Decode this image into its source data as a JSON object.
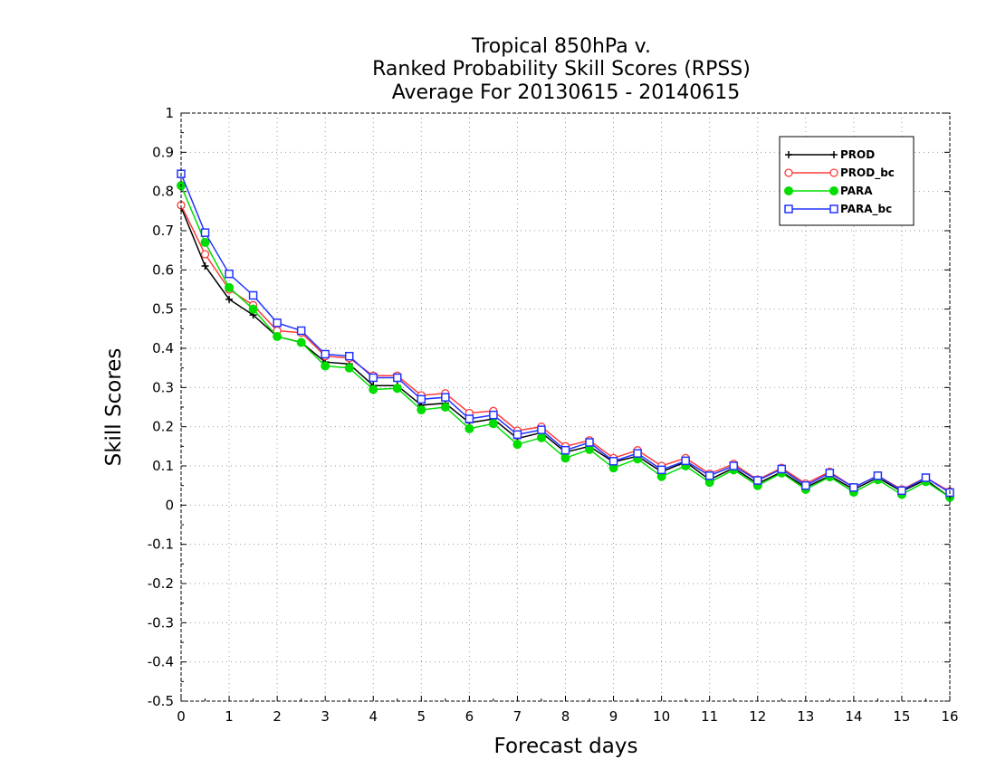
{
  "chart_data": {
    "type": "line",
    "title_lines": [
      "Tropical 850hPa v.",
      "Ranked Probability Skill Scores (RPSS)",
      "Average For 20130615 - 20140615"
    ],
    "xlabel": "Forecast days",
    "ylabel": "Skill Scores",
    "xlim": [
      0,
      16
    ],
    "ylim": [
      -0.5,
      1
    ],
    "xticks": [
      "0",
      "1",
      "2",
      "3",
      "4",
      "5",
      "6",
      "7",
      "8",
      "9",
      "10",
      "11",
      "12",
      "13",
      "14",
      "15",
      "16"
    ],
    "yticks": [
      "-0.5",
      "-0.4",
      "-0.3",
      "-0.2",
      "-0.1",
      "0",
      "0.1",
      "0.2",
      "0.3",
      "0.4",
      "0.5",
      "0.6",
      "0.7",
      "0.8",
      "0.9",
      "1"
    ],
    "grid": true,
    "legend_position": "top-right",
    "x": [
      0,
      0.5,
      1,
      1.5,
      2,
      2.5,
      3,
      3.5,
      4,
      4.5,
      5,
      5.5,
      6,
      6.5,
      7,
      7.5,
      8,
      8.5,
      9,
      9.5,
      10,
      10.5,
      11,
      11.5,
      12,
      12.5,
      13,
      13.5,
      14,
      14.5,
      15,
      15.5,
      16
    ],
    "series": [
      {
        "name": "PROD",
        "color": "#000000",
        "marker": "plus",
        "values": [
          0.76,
          0.61,
          0.525,
          0.485,
          0.43,
          0.415,
          0.365,
          0.36,
          0.305,
          0.305,
          0.255,
          0.26,
          0.21,
          0.22,
          0.17,
          0.185,
          0.135,
          0.15,
          0.11,
          0.125,
          0.085,
          0.11,
          0.065,
          0.095,
          0.055,
          0.085,
          0.045,
          0.075,
          0.04,
          0.07,
          0.035,
          0.065,
          0.02
        ]
      },
      {
        "name": "PROD_bc",
        "color": "#ff3b3b",
        "marker": "circle",
        "values": [
          0.765,
          0.64,
          0.55,
          0.51,
          0.445,
          0.44,
          0.38,
          0.375,
          0.33,
          0.33,
          0.28,
          0.285,
          0.235,
          0.24,
          0.19,
          0.2,
          0.15,
          0.165,
          0.12,
          0.14,
          0.1,
          0.12,
          0.08,
          0.105,
          0.065,
          0.095,
          0.055,
          0.085,
          0.045,
          0.075,
          0.04,
          0.07,
          0.035
        ]
      },
      {
        "name": "PARA",
        "color": "#00dd00",
        "marker": "filled-circle",
        "values": [
          0.815,
          0.67,
          0.555,
          0.5,
          0.43,
          0.415,
          0.355,
          0.35,
          0.295,
          0.298,
          0.243,
          0.25,
          0.195,
          0.208,
          0.155,
          0.172,
          0.12,
          0.142,
          0.095,
          0.118,
          0.073,
          0.1,
          0.058,
          0.09,
          0.05,
          0.082,
          0.04,
          0.072,
          0.033,
          0.065,
          0.027,
          0.06,
          0.02
        ]
      },
      {
        "name": "PARA_bc",
        "color": "#2233ff",
        "marker": "square",
        "values": [
          0.845,
          0.695,
          0.59,
          0.535,
          0.465,
          0.445,
          0.385,
          0.38,
          0.325,
          0.325,
          0.27,
          0.275,
          0.22,
          0.23,
          0.18,
          0.192,
          0.14,
          0.16,
          0.112,
          0.132,
          0.09,
          0.113,
          0.075,
          0.1,
          0.063,
          0.092,
          0.05,
          0.082,
          0.045,
          0.075,
          0.037,
          0.07,
          0.032
        ]
      }
    ]
  }
}
